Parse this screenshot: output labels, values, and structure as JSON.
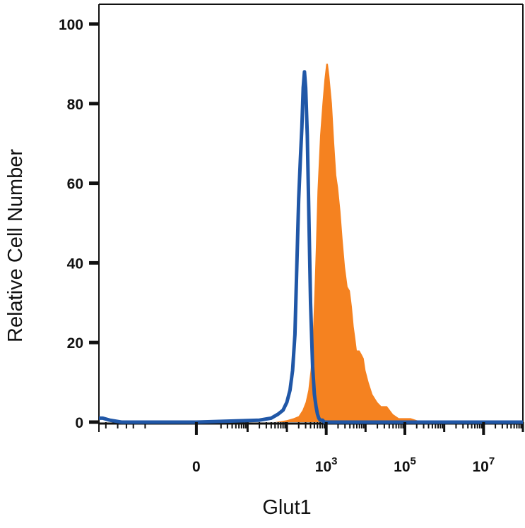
{
  "chart_data": {
    "type": "area",
    "title": "",
    "xlabel": "Glut1",
    "ylabel": "Relative Cell Number",
    "x_scale": "biexponential",
    "xlim": [
      -150,
      100000000
    ],
    "ylim": [
      0,
      100
    ],
    "grid": false,
    "legend": "none",
    "y_ticks": [
      {
        "value": 0,
        "label": "0"
      },
      {
        "value": 20,
        "label": "20"
      },
      {
        "value": 40,
        "label": "40"
      },
      {
        "value": 60,
        "label": "60"
      },
      {
        "value": 80,
        "label": "80"
      },
      {
        "value": 100,
        "label": "100"
      }
    ],
    "x_ticks": [
      {
        "value": 0,
        "base": "0",
        "exp": ""
      },
      {
        "value": 1000,
        "base": "10",
        "exp": "3"
      },
      {
        "value": 100000,
        "base": "10",
        "exp": "5"
      },
      {
        "value": 10000000,
        "base": "10",
        "exp": "7"
      }
    ],
    "series": [
      {
        "role": "stained",
        "style": "filled",
        "color": "#f58220",
        "x": [
          -150,
          50,
          100,
          150,
          200,
          250,
          300,
          350,
          400,
          450,
          500,
          550,
          600,
          700,
          800,
          900,
          1000,
          1100,
          1200,
          1400,
          1600,
          1800,
          2000,
          2300,
          2600,
          3000,
          3500,
          4000,
          4500,
          5000,
          5500,
          6000,
          7000,
          8000,
          9000,
          10000,
          12000,
          15000,
          20000,
          25000,
          35000,
          50000,
          70000,
          100000,
          140000,
          200000,
          300000,
          1000000,
          10000000,
          100000000
        ],
        "y": [
          0,
          0,
          0.5,
          1,
          1.5,
          3,
          5,
          8,
          13,
          20,
          32,
          45,
          58,
          72,
          80,
          86,
          90,
          90,
          87,
          80,
          70,
          62,
          59,
          53,
          46,
          39,
          34,
          33,
          29,
          24,
          21,
          18,
          18,
          17,
          16,
          13,
          10,
          7,
          5,
          4,
          4,
          2,
          1,
          1,
          1,
          0.5,
          0,
          0,
          0,
          0
        ]
      },
      {
        "role": "control",
        "style": "outline",
        "color": "#2057a7",
        "x": [
          -150,
          -120,
          -80,
          -40,
          0,
          20,
          40,
          60,
          80,
          100,
          120,
          140,
          160,
          180,
          200,
          220,
          240,
          260,
          280,
          300,
          330,
          360,
          400,
          450,
          500,
          550,
          600,
          650,
          700,
          800,
          900,
          1000,
          1100,
          1300,
          1600,
          2000,
          3000,
          5000,
          10000,
          100000,
          1000000,
          10000000,
          100000000
        ],
        "y": [
          1,
          1,
          0.5,
          0,
          0,
          0.5,
          1,
          2,
          3,
          5,
          8,
          13,
          22,
          40,
          56,
          66,
          74,
          84,
          88,
          84,
          72,
          53,
          30,
          14,
          7,
          4,
          2,
          1,
          0.5,
          0.5,
          0,
          0,
          0,
          0,
          0,
          0,
          0,
          0,
          0,
          0,
          0,
          0,
          0
        ]
      }
    ]
  }
}
